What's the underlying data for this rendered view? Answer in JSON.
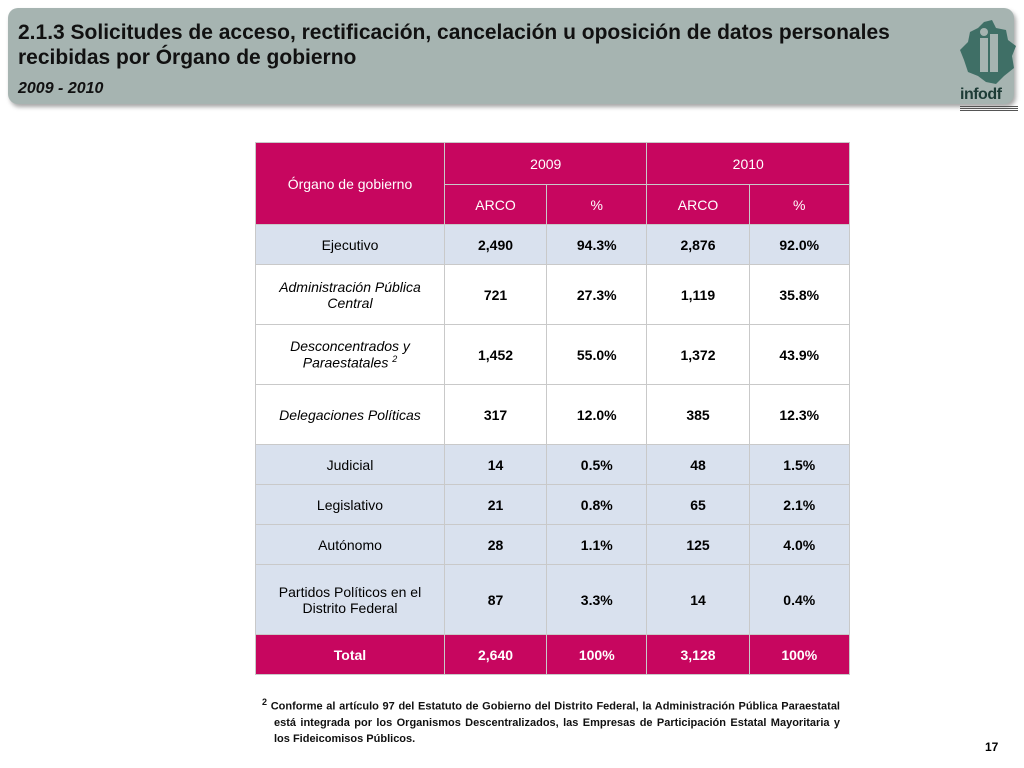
{
  "header": {
    "title": "2.1.3 Solicitudes de acceso, rectificación, cancelación u oposición de datos personales recibidas por Órgano de gobierno",
    "subtitle": "2009 - 2010",
    "logo_text": "infodf"
  },
  "table": {
    "col_organo": "Órgano de gobierno",
    "year1": "2009",
    "year2": "2010",
    "sub_arco": "ARCO",
    "sub_pct": "%",
    "rows": [
      {
        "label": "Ejecutivo",
        "a1": "2,490",
        "p1": "94.3%",
        "a2": "2,876",
        "p2": "92.0%"
      },
      {
        "label": "Administración Pública Central",
        "a1": "721",
        "p1": "27.3%",
        "a2": "1,119",
        "p2": "35.8%"
      },
      {
        "label": "Desconcentrados y Paraestatales",
        "sup": "2",
        "a1": "1,452",
        "p1": "55.0%",
        "a2": "1,372",
        "p2": "43.9%"
      },
      {
        "label": "Delegaciones Políticas",
        "a1": "317",
        "p1": "12.0%",
        "a2": "385",
        "p2": "12.3%"
      },
      {
        "label": "Judicial",
        "a1": "14",
        "p1": "0.5%",
        "a2": "48",
        "p2": "1.5%"
      },
      {
        "label": "Legislativo",
        "a1": "21",
        "p1": "0.8%",
        "a2": "65",
        "p2": "2.1%"
      },
      {
        "label": "Autónomo",
        "a1": "28",
        "p1": "1.1%",
        "a2": "125",
        "p2": "4.0%"
      },
      {
        "label": "Partidos Políticos en el Distrito Federal",
        "a1": "87",
        "p1": "3.3%",
        "a2": "14",
        "p2": "0.4%"
      }
    ],
    "total": {
      "label": "Total",
      "a1": "2,640",
      "p1": "100%",
      "a2": "3,128",
      "p2": "100%"
    }
  },
  "footnote": {
    "marker": "2",
    "text": "Conforme al artículo 97 del Estatuto de Gobierno del Distrito Federal, la Administración Pública Paraestatal está integrada por los Organismos Descentralizados, las Empresas de Participación Estatal Mayoritaria y los Fideicomisos Públicos."
  },
  "page_number": "17",
  "colors": {
    "accent": "#c7065f",
    "header_bg": "#a6b4b1",
    "row_bg": "#d9e1ee"
  }
}
